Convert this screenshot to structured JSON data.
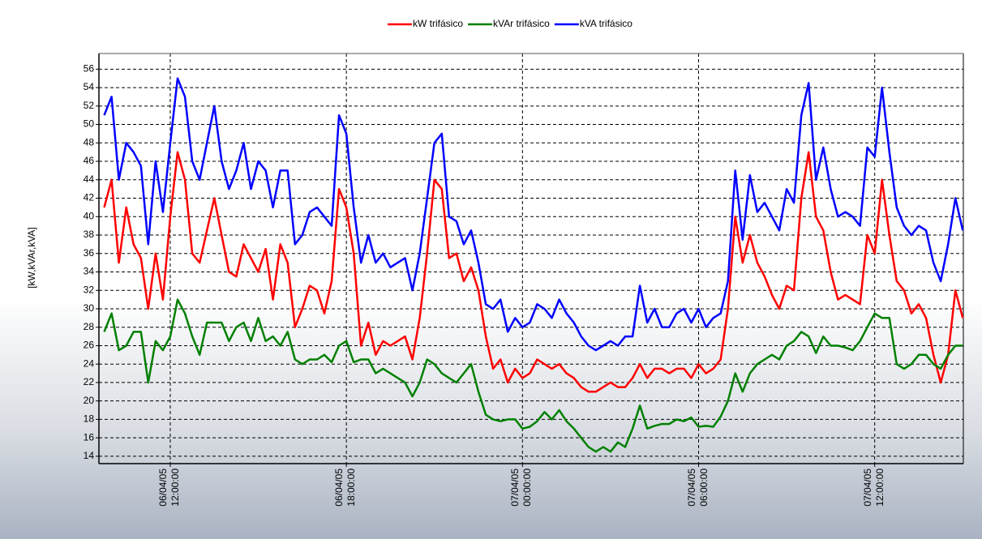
{
  "chart_data": {
    "type": "line",
    "y_label": "[kW,kVAr,kVA]",
    "x": [
      9.75,
      10,
      10.25,
      10.5,
      10.75,
      11,
      11.25,
      11.5,
      11.75,
      12,
      12.25,
      12.5,
      12.75,
      13,
      13.25,
      13.5,
      13.75,
      14,
      14.25,
      14.5,
      14.75,
      15,
      15.25,
      15.5,
      15.75,
      16,
      16.25,
      16.5,
      16.75,
      17,
      17.25,
      17.5,
      17.75,
      18,
      18.25,
      18.5,
      18.75,
      19,
      19.25,
      19.5,
      19.75,
      20,
      20.25,
      20.5,
      20.75,
      21,
      21.25,
      21.5,
      21.75,
      22,
      22.25,
      22.5,
      22.75,
      23,
      23.25,
      23.5,
      23.75,
      24,
      24.25,
      24.5,
      24.75,
      25,
      25.25,
      25.5,
      25.75,
      26,
      26.25,
      26.5,
      26.75,
      27,
      27.25,
      27.5,
      27.75,
      28,
      28.25,
      28.5,
      28.75,
      29,
      29.25,
      29.5,
      29.75,
      30,
      30.25,
      30.5,
      30.75,
      31,
      31.25,
      31.5,
      31.75,
      32,
      32.25,
      32.5,
      32.75,
      33,
      33.25,
      33.5,
      33.75,
      34,
      34.25,
      34.5,
      34.75,
      35,
      35.25,
      35.5,
      35.75,
      36,
      36.25,
      36.5,
      36.75,
      37,
      37.25,
      37.5,
      37.75,
      38,
      38.25,
      38.5,
      38.75,
      39
    ],
    "series": [
      {
        "name": "kW trifásico",
        "color": "#ff0000",
        "values": [
          41,
          44,
          35,
          41,
          37,
          35.5,
          30,
          36,
          31,
          40,
          47,
          44,
          36,
          35,
          38.5,
          42,
          38,
          34,
          33.5,
          37,
          35.5,
          34,
          36.5,
          31,
          37,
          35,
          28,
          30,
          32.5,
          32,
          29.5,
          33,
          43,
          41,
          36,
          26,
          28.5,
          25,
          26.5,
          26,
          26.5,
          27,
          24.5,
          29,
          36,
          44,
          43,
          35.5,
          36,
          33,
          34.5,
          32,
          27,
          23.5,
          24.5,
          22,
          23.5,
          22.5,
          23,
          24.5,
          24,
          23.5,
          24,
          23,
          22.5,
          21.5,
          21,
          21,
          21.5,
          22,
          21.5,
          21.5,
          22.5,
          24,
          22.5,
          23.5,
          23.5,
          23,
          23.5,
          23.5,
          22.5,
          24,
          23,
          23.5,
          24.5,
          30,
          40,
          35,
          38,
          35,
          33.5,
          31.5,
          30,
          32.5,
          32,
          42,
          47,
          40,
          38.5,
          34,
          31,
          31.5,
          31,
          30.5,
          38,
          36,
          44,
          38,
          33,
          32,
          29.5,
          30.5,
          29,
          25,
          22,
          25,
          32,
          29
        ]
      },
      {
        "name": "kVAr trifásico",
        "color": "#008000",
        "values": [
          27.5,
          29.5,
          25.5,
          26,
          27.5,
          27.5,
          22,
          26.5,
          25.5,
          27,
          31,
          29.5,
          27,
          25,
          28.5,
          28.5,
          28.5,
          26.5,
          28,
          28.5,
          26.5,
          29,
          26.5,
          27,
          26,
          27.5,
          24.5,
          24,
          24.5,
          24.5,
          25,
          24.2,
          26,
          26.5,
          24.2,
          24.5,
          24.5,
          23,
          23.5,
          23,
          22.5,
          22,
          20.5,
          22,
          24.5,
          24,
          23,
          22.5,
          22,
          23,
          24,
          21,
          18.5,
          18,
          17.8,
          18,
          18,
          17,
          17.2,
          17.8,
          18.8,
          18,
          19,
          17.8,
          17,
          16,
          15,
          14.5,
          15,
          14.5,
          15.5,
          15,
          17,
          19.5,
          17,
          17.3,
          17.5,
          17.5,
          18,
          17.8,
          18.2,
          17.2,
          17.3,
          17.2,
          18.3,
          20,
          23,
          21,
          23,
          24,
          24.5,
          25,
          24.5,
          26,
          26.5,
          27.5,
          27,
          25.2,
          27,
          26,
          26,
          25.8,
          25.5,
          26.5,
          28,
          29.5,
          29,
          29,
          24,
          23.5,
          24,
          25,
          25,
          24,
          23.5,
          25,
          26,
          26
        ]
      },
      {
        "name": "kVA trifásico",
        "color": "#0000ff",
        "values": [
          51,
          53,
          44,
          48,
          47,
          45.5,
          37,
          46,
          40.5,
          48,
          55,
          53,
          46,
          44,
          48,
          52,
          46,
          43,
          45,
          48,
          43,
          46,
          45,
          41,
          45,
          45,
          37,
          38,
          40.5,
          41,
          40,
          39,
          51,
          49,
          41,
          35,
          38,
          35,
          36,
          34.5,
          35,
          35.5,
          32,
          36,
          42,
          48,
          49,
          40,
          39.5,
          37,
          38.5,
          35,
          30.5,
          30,
          31,
          27.5,
          29,
          28,
          28.5,
          30.5,
          30,
          29,
          31,
          29.5,
          28.5,
          27,
          26,
          25.5,
          26,
          26.5,
          26,
          27,
          27,
          32.5,
          28.5,
          30,
          28,
          28,
          29.5,
          30,
          28.5,
          30,
          28,
          29,
          29.5,
          33,
          45,
          37.5,
          44.5,
          40.5,
          41.5,
          40,
          38.5,
          43,
          41.5,
          51,
          54.5,
          44,
          47.5,
          43,
          40,
          40.5,
          40,
          39,
          47.5,
          46.5,
          54,
          47,
          41,
          39,
          38,
          39,
          38.5,
          35,
          33,
          37,
          42,
          38.5
        ]
      }
    ],
    "xlim": [
      9.57,
      39.02
    ],
    "xticks": [
      {
        "value": 12,
        "label": "06/04/05 12:00:00"
      },
      {
        "value": 18,
        "label": "06/04/05 18:00:00"
      },
      {
        "value": 24,
        "label": "07/04/05 00:00:00"
      },
      {
        "value": 30,
        "label": "07/04/05 06:00:00"
      },
      {
        "value": 36,
        "label": "07/04/05 12:00:00"
      }
    ],
    "ylim": [
      13.2,
      57.7
    ],
    "yticks": [
      14,
      16,
      18,
      20,
      22,
      24,
      26,
      28,
      30,
      32,
      34,
      36,
      38,
      40,
      42,
      44,
      46,
      48,
      50,
      52,
      54,
      56
    ],
    "grid": true
  }
}
